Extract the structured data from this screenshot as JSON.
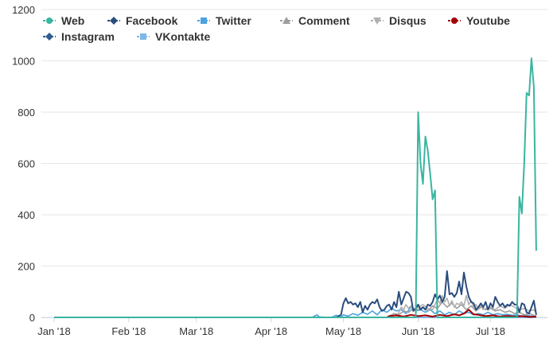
{
  "chart_data": {
    "type": "line",
    "x_ticks": [
      "Jan '18",
      "Feb '18",
      "Mar '18",
      "Apr '18",
      "May '18",
      "Jun '18",
      "Jul '18"
    ],
    "x_range": [
      "2018-01-01",
      "2018-07-22"
    ],
    "ylim": [
      0,
      1200
    ],
    "y_ticks": [
      0,
      200,
      400,
      600,
      800,
      1000,
      1200
    ],
    "grid": {
      "horizontal": true,
      "vertical": false
    },
    "legend_position": "top-left",
    "series": [
      {
        "name": "Web",
        "color": "#3ab5a0",
        "marker": "circle",
        "points": [
          [
            "2018-01-01",
            0
          ],
          [
            "2018-05-31",
            0
          ],
          [
            "2018-06-01",
            800
          ],
          [
            "2018-06-02",
            600
          ],
          [
            "2018-06-03",
            520
          ],
          [
            "2018-06-04",
            705
          ],
          [
            "2018-06-05",
            650
          ],
          [
            "2018-06-06",
            560
          ],
          [
            "2018-06-07",
            460
          ],
          [
            "2018-06-08",
            495
          ],
          [
            "2018-06-09",
            0
          ],
          [
            "2018-07-12",
            0
          ],
          [
            "2018-07-13",
            470
          ],
          [
            "2018-07-14",
            405
          ],
          [
            "2018-07-15",
            600
          ],
          [
            "2018-07-16",
            875
          ],
          [
            "2018-07-17",
            865
          ],
          [
            "2018-07-18",
            1010
          ],
          [
            "2018-07-19",
            900
          ],
          [
            "2018-07-20",
            260
          ]
        ]
      },
      {
        "name": "Facebook",
        "color": "#2b4d7e",
        "marker": "diamond",
        "points": [
          [
            "2018-01-01",
            0
          ],
          [
            "2018-04-28",
            0
          ],
          [
            "2018-04-30",
            10
          ],
          [
            "2018-05-01",
            55
          ],
          [
            "2018-05-02",
            75
          ],
          [
            "2018-05-03",
            55
          ],
          [
            "2018-05-04",
            60
          ],
          [
            "2018-05-05",
            50
          ],
          [
            "2018-05-06",
            55
          ],
          [
            "2018-05-07",
            40
          ],
          [
            "2018-05-08",
            60
          ],
          [
            "2018-05-09",
            20
          ],
          [
            "2018-05-10",
            45
          ],
          [
            "2018-05-11",
            30
          ],
          [
            "2018-05-12",
            50
          ],
          [
            "2018-05-13",
            60
          ],
          [
            "2018-05-14",
            55
          ],
          [
            "2018-05-15",
            70
          ],
          [
            "2018-05-16",
            40
          ],
          [
            "2018-05-17",
            25
          ],
          [
            "2018-05-18",
            30
          ],
          [
            "2018-05-19",
            45
          ],
          [
            "2018-05-20",
            50
          ],
          [
            "2018-05-21",
            30
          ],
          [
            "2018-05-22",
            60
          ],
          [
            "2018-05-23",
            40
          ],
          [
            "2018-05-24",
            100
          ],
          [
            "2018-05-25",
            50
          ],
          [
            "2018-05-26",
            75
          ],
          [
            "2018-05-27",
            100
          ],
          [
            "2018-05-28",
            95
          ],
          [
            "2018-05-29",
            80
          ],
          [
            "2018-05-30",
            25
          ],
          [
            "2018-05-31",
            35
          ],
          [
            "2018-06-01",
            50
          ],
          [
            "2018-06-02",
            30
          ],
          [
            "2018-06-03",
            40
          ],
          [
            "2018-06-04",
            30
          ],
          [
            "2018-06-05",
            50
          ],
          [
            "2018-06-06",
            45
          ],
          [
            "2018-06-07",
            60
          ],
          [
            "2018-06-08",
            90
          ],
          [
            "2018-06-09",
            70
          ],
          [
            "2018-06-10",
            85
          ],
          [
            "2018-06-11",
            60
          ],
          [
            "2018-06-12",
            80
          ],
          [
            "2018-06-13",
            180
          ],
          [
            "2018-06-14",
            90
          ],
          [
            "2018-06-15",
            95
          ],
          [
            "2018-06-16",
            80
          ],
          [
            "2018-06-17",
            95
          ],
          [
            "2018-06-18",
            140
          ],
          [
            "2018-06-19",
            90
          ],
          [
            "2018-06-20",
            175
          ],
          [
            "2018-06-21",
            120
          ],
          [
            "2018-06-22",
            80
          ],
          [
            "2018-06-23",
            60
          ],
          [
            "2018-06-24",
            55
          ],
          [
            "2018-06-25",
            30
          ],
          [
            "2018-06-26",
            40
          ],
          [
            "2018-06-27",
            55
          ],
          [
            "2018-06-28",
            40
          ],
          [
            "2018-06-29",
            60
          ],
          [
            "2018-06-30",
            30
          ],
          [
            "2018-07-01",
            55
          ],
          [
            "2018-07-02",
            40
          ],
          [
            "2018-07-03",
            80
          ],
          [
            "2018-07-04",
            60
          ],
          [
            "2018-07-05",
            45
          ],
          [
            "2018-07-06",
            55
          ],
          [
            "2018-07-07",
            40
          ],
          [
            "2018-07-08",
            50
          ],
          [
            "2018-07-09",
            45
          ],
          [
            "2018-07-10",
            60
          ],
          [
            "2018-07-11",
            50
          ],
          [
            "2018-07-12",
            50
          ],
          [
            "2018-07-13",
            20
          ],
          [
            "2018-07-14",
            55
          ],
          [
            "2018-07-15",
            50
          ],
          [
            "2018-07-16",
            20
          ],
          [
            "2018-07-17",
            15
          ],
          [
            "2018-07-18",
            40
          ],
          [
            "2018-07-19",
            65
          ],
          [
            "2018-07-20",
            10
          ]
        ]
      },
      {
        "name": "Twitter",
        "color": "#4aa3df",
        "marker": "square",
        "points": [
          [
            "2018-01-01",
            0
          ],
          [
            "2018-04-18",
            0
          ],
          [
            "2018-04-20",
            10
          ],
          [
            "2018-04-21",
            2
          ],
          [
            "2018-04-26",
            0
          ],
          [
            "2018-04-28",
            8
          ],
          [
            "2018-04-30",
            2
          ],
          [
            "2018-05-01",
            10
          ],
          [
            "2018-05-03",
            5
          ],
          [
            "2018-05-05",
            15
          ],
          [
            "2018-05-07",
            8
          ],
          [
            "2018-05-09",
            20
          ],
          [
            "2018-05-11",
            12
          ],
          [
            "2018-05-13",
            25
          ],
          [
            "2018-05-15",
            10
          ],
          [
            "2018-05-17",
            30
          ],
          [
            "2018-05-19",
            20
          ],
          [
            "2018-05-21",
            35
          ],
          [
            "2018-05-23",
            25
          ],
          [
            "2018-05-25",
            30
          ],
          [
            "2018-05-27",
            15
          ],
          [
            "2018-05-29",
            40
          ],
          [
            "2018-05-31",
            25
          ],
          [
            "2018-06-02",
            30
          ],
          [
            "2018-06-04",
            20
          ],
          [
            "2018-06-06",
            30
          ],
          [
            "2018-06-08",
            15
          ],
          [
            "2018-06-10",
            25
          ],
          [
            "2018-06-12",
            10
          ],
          [
            "2018-06-14",
            20
          ],
          [
            "2018-06-16",
            10
          ],
          [
            "2018-06-18",
            25
          ],
          [
            "2018-06-20",
            15
          ],
          [
            "2018-06-22",
            20
          ],
          [
            "2018-06-24",
            10
          ],
          [
            "2018-06-26",
            15
          ],
          [
            "2018-06-28",
            10
          ],
          [
            "2018-06-30",
            20
          ],
          [
            "2018-07-02",
            10
          ],
          [
            "2018-07-04",
            15
          ],
          [
            "2018-07-06",
            10
          ],
          [
            "2018-07-08",
            12
          ],
          [
            "2018-07-10",
            8
          ],
          [
            "2018-07-12",
            10
          ],
          [
            "2018-07-14",
            5
          ],
          [
            "2018-07-16",
            8
          ],
          [
            "2018-07-18",
            5
          ],
          [
            "2018-07-20",
            3
          ]
        ]
      },
      {
        "name": "Comment",
        "color": "#9e9e9e",
        "marker": "triangle",
        "points": [
          [
            "2018-01-01",
            0
          ],
          [
            "2018-05-19",
            0
          ],
          [
            "2018-05-20",
            5
          ],
          [
            "2018-05-22",
            15
          ],
          [
            "2018-05-24",
            10
          ],
          [
            "2018-05-26",
            25
          ],
          [
            "2018-05-28",
            20
          ],
          [
            "2018-05-30",
            35
          ],
          [
            "2018-06-01",
            30
          ],
          [
            "2018-06-03",
            40
          ],
          [
            "2018-06-05",
            25
          ],
          [
            "2018-06-07",
            45
          ],
          [
            "2018-06-09",
            35
          ],
          [
            "2018-06-11",
            60
          ],
          [
            "2018-06-13",
            40
          ],
          [
            "2018-06-15",
            55
          ],
          [
            "2018-06-17",
            35
          ],
          [
            "2018-06-19",
            50
          ],
          [
            "2018-06-21",
            30
          ],
          [
            "2018-06-23",
            45
          ],
          [
            "2018-06-25",
            25
          ],
          [
            "2018-06-27",
            40
          ],
          [
            "2018-06-29",
            30
          ],
          [
            "2018-07-01",
            35
          ],
          [
            "2018-07-03",
            25
          ],
          [
            "2018-07-05",
            30
          ],
          [
            "2018-07-07",
            20
          ],
          [
            "2018-07-09",
            25
          ],
          [
            "2018-07-11",
            15
          ],
          [
            "2018-07-13",
            20
          ],
          [
            "2018-07-15",
            10
          ],
          [
            "2018-07-17",
            15
          ],
          [
            "2018-07-19",
            8
          ],
          [
            "2018-07-20",
            5
          ]
        ]
      },
      {
        "name": "Disqus",
        "color": "#b0b0b0",
        "marker": "triangle-down",
        "points": [
          [
            "2018-01-01",
            0
          ],
          [
            "2018-05-23",
            0
          ],
          [
            "2018-05-24",
            20
          ],
          [
            "2018-05-25",
            40
          ],
          [
            "2018-05-26",
            30
          ],
          [
            "2018-05-27",
            50
          ],
          [
            "2018-05-28",
            35
          ],
          [
            "2018-05-29",
            45
          ],
          [
            "2018-05-30",
            30
          ],
          [
            "2018-06-01",
            40
          ],
          [
            "2018-06-03",
            50
          ],
          [
            "2018-06-05",
            35
          ],
          [
            "2018-06-07",
            30
          ],
          [
            "2018-06-09",
            70
          ],
          [
            "2018-06-10",
            55
          ],
          [
            "2018-06-11",
            85
          ],
          [
            "2018-06-12",
            60
          ],
          [
            "2018-06-13",
            75
          ],
          [
            "2018-06-14",
            45
          ],
          [
            "2018-06-15",
            65
          ],
          [
            "2018-06-16",
            40
          ],
          [
            "2018-06-17",
            55
          ],
          [
            "2018-06-18",
            50
          ],
          [
            "2018-06-19",
            60
          ],
          [
            "2018-06-20",
            45
          ],
          [
            "2018-06-21",
            85
          ],
          [
            "2018-06-22",
            50
          ],
          [
            "2018-06-23",
            65
          ],
          [
            "2018-06-24",
            40
          ],
          [
            "2018-06-25",
            50
          ],
          [
            "2018-06-26",
            35
          ],
          [
            "2018-06-27",
            45
          ],
          [
            "2018-06-28",
            30
          ],
          [
            "2018-06-29",
            35
          ],
          [
            "2018-07-01",
            40
          ],
          [
            "2018-07-03",
            30
          ],
          [
            "2018-07-05",
            45
          ],
          [
            "2018-07-07",
            35
          ],
          [
            "2018-07-09",
            50
          ],
          [
            "2018-07-11",
            40
          ],
          [
            "2018-07-13",
            30
          ],
          [
            "2018-07-15",
            35
          ],
          [
            "2018-07-17",
            25
          ],
          [
            "2018-07-19",
            30
          ],
          [
            "2018-07-20",
            20
          ]
        ]
      },
      {
        "name": "Youtube",
        "color": "#a30000",
        "marker": "circle",
        "points": [
          [
            "2018-01-01",
            0
          ],
          [
            "2018-05-19",
            0
          ],
          [
            "2018-05-20",
            5
          ],
          [
            "2018-05-23",
            8
          ],
          [
            "2018-05-26",
            3
          ],
          [
            "2018-05-29",
            10
          ],
          [
            "2018-06-01",
            5
          ],
          [
            "2018-06-04",
            8
          ],
          [
            "2018-06-07",
            3
          ],
          [
            "2018-06-10",
            10
          ],
          [
            "2018-06-13",
            5
          ],
          [
            "2018-06-16",
            12
          ],
          [
            "2018-06-18",
            8
          ],
          [
            "2018-06-20",
            15
          ],
          [
            "2018-06-22",
            30
          ],
          [
            "2018-06-24",
            12
          ],
          [
            "2018-06-26",
            10
          ],
          [
            "2018-06-29",
            5
          ],
          [
            "2018-07-02",
            8
          ],
          [
            "2018-07-05",
            3
          ],
          [
            "2018-07-08",
            6
          ],
          [
            "2018-07-11",
            3
          ],
          [
            "2018-07-14",
            5
          ],
          [
            "2018-07-17",
            2
          ],
          [
            "2018-07-20",
            3
          ]
        ]
      },
      {
        "name": "Instagram",
        "color": "#2f5d8f",
        "marker": "diamond",
        "points": [
          [
            "2018-01-01",
            0
          ],
          [
            "2018-07-20",
            0
          ]
        ]
      },
      {
        "name": "VKontakte",
        "color": "#7fb8e6",
        "marker": "square",
        "points": [
          [
            "2018-01-01",
            0
          ],
          [
            "2018-07-20",
            0
          ]
        ]
      }
    ]
  }
}
